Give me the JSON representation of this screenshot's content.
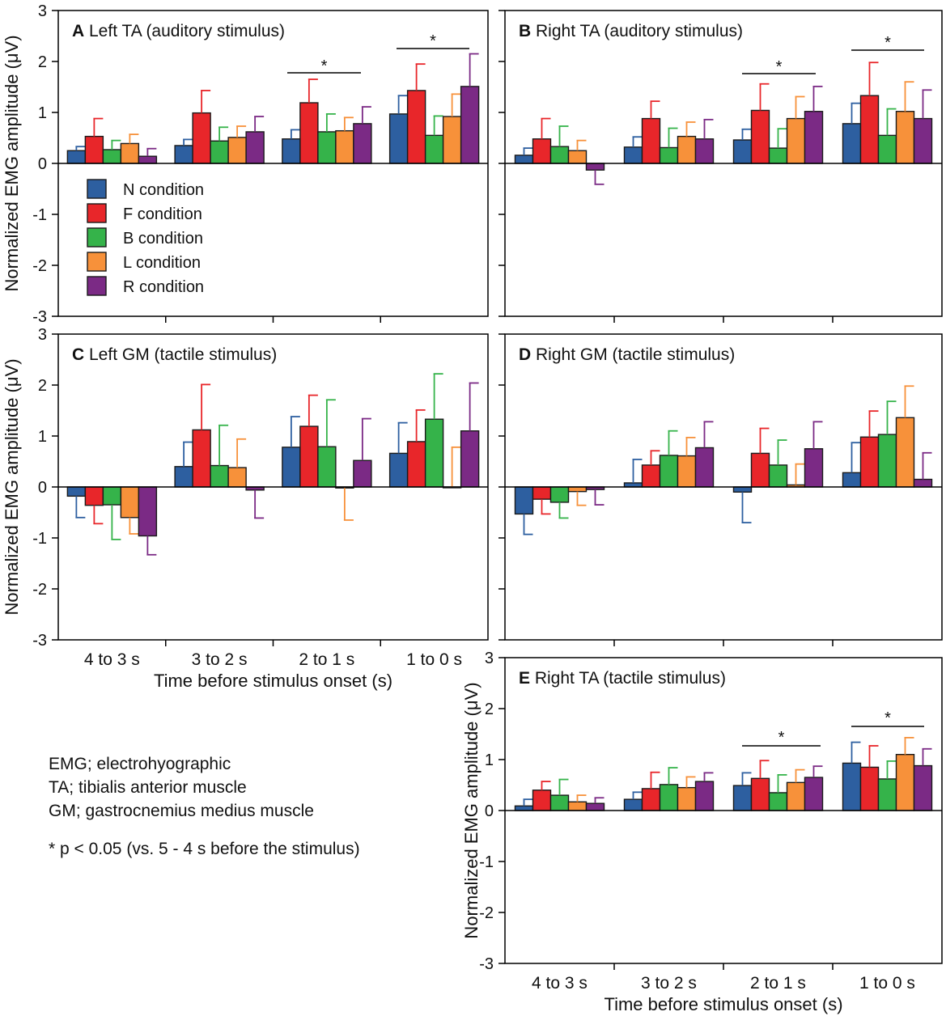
{
  "chart_data": [
    {
      "type": "bar",
      "panel": "A",
      "title": "Left TA (auditory stimulus)",
      "categories": [
        "4 to 3 s",
        "3 to 2 s",
        "2 to 1 s",
        "1 to 0 s"
      ],
      "ylabel": "Normalized EMG amplitude (μV)",
      "xlabel": "",
      "ylim": [
        -3,
        3
      ],
      "yticks": [
        "3",
        "2",
        "1",
        "0",
        "-1",
        "-2",
        "-3"
      ],
      "series": [
        {
          "name": "N condition",
          "values": [
            0.25,
            0.35,
            0.48,
            0.97
          ],
          "errors": [
            0.08,
            0.12,
            0.18,
            0.36
          ]
        },
        {
          "name": "F condition",
          "values": [
            0.53,
            0.99,
            1.19,
            1.43
          ],
          "errors": [
            0.35,
            0.44,
            0.46,
            0.52
          ]
        },
        {
          "name": "B condition",
          "values": [
            0.27,
            0.44,
            0.62,
            0.55
          ],
          "errors": [
            0.18,
            0.27,
            0.35,
            0.38
          ]
        },
        {
          "name": "L condition",
          "values": [
            0.39,
            0.51,
            0.64,
            0.92
          ],
          "errors": [
            0.18,
            0.22,
            0.26,
            0.44
          ]
        },
        {
          "name": "R condition",
          "values": [
            0.14,
            0.62,
            0.78,
            1.51
          ],
          "errors": [
            0.15,
            0.3,
            0.33,
            0.64
          ]
        }
      ],
      "significance": [
        {
          "category": "2 to 1 s",
          "label": "*"
        },
        {
          "category": "1 to 0 s",
          "label": "*"
        }
      ],
      "legend": "inside lower-left"
    },
    {
      "type": "bar",
      "panel": "B",
      "title": "Right TA (auditory stimulus)",
      "categories": [
        "4 to 3 s",
        "3 to 2 s",
        "2 to 1 s",
        "1 to 0 s"
      ],
      "ylabel": "",
      "xlabel": "",
      "ylim": [
        -3,
        3
      ],
      "series": [
        {
          "name": "N condition",
          "values": [
            0.16,
            0.32,
            0.46,
            0.78
          ],
          "errors": [
            0.14,
            0.2,
            0.21,
            0.4
          ]
        },
        {
          "name": "F condition",
          "values": [
            0.48,
            0.88,
            1.04,
            1.33
          ],
          "errors": [
            0.4,
            0.34,
            0.52,
            0.65
          ]
        },
        {
          "name": "B condition",
          "values": [
            0.33,
            0.31,
            0.3,
            0.55
          ],
          "errors": [
            0.4,
            0.38,
            0.38,
            0.52
          ]
        },
        {
          "name": "L condition",
          "values": [
            0.25,
            0.53,
            0.88,
            1.02
          ],
          "errors": [
            0.2,
            0.28,
            0.43,
            0.58
          ]
        },
        {
          "name": "R condition",
          "values": [
            -0.13,
            0.48,
            1.02,
            0.88
          ],
          "errors": [
            0.28,
            0.38,
            0.49,
            0.56
          ]
        }
      ],
      "significance": [
        {
          "category": "2 to 1 s",
          "label": "*"
        },
        {
          "category": "1 to 0 s",
          "label": "*"
        }
      ]
    },
    {
      "type": "bar",
      "panel": "C",
      "title": "Left GM (tactile stimulus)",
      "categories": [
        "4 to 3 s",
        "3 to 2 s",
        "2 to 1 s",
        "1 to 0 s"
      ],
      "ylabel": "Normalized EMG amplitude (μV)",
      "xlabel": "Time before stimulus onset (s)",
      "ylim": [
        -3,
        3
      ],
      "yticks": [
        "3",
        "2",
        "1",
        "0",
        "-1",
        "-2",
        "-3"
      ],
      "series": [
        {
          "name": "N condition",
          "values": [
            -0.18,
            0.4,
            0.78,
            0.66
          ],
          "errors": [
            0.42,
            0.48,
            0.6,
            0.6
          ]
        },
        {
          "name": "F condition",
          "values": [
            -0.36,
            1.12,
            1.19,
            0.89
          ],
          "errors": [
            0.36,
            0.89,
            0.61,
            0.62
          ]
        },
        {
          "name": "B condition",
          "values": [
            -0.35,
            0.42,
            0.79,
            1.33
          ],
          "errors": [
            0.68,
            0.79,
            0.92,
            0.89
          ]
        },
        {
          "name": "L condition",
          "values": [
            -0.6,
            0.38,
            -0.02,
            0.0
          ],
          "errors": [
            0.32,
            0.56,
            0.63,
            0.78
          ]
        },
        {
          "name": "R condition",
          "values": [
            -0.96,
            -0.06,
            0.52,
            1.1
          ],
          "errors": [
            0.37,
            0.55,
            0.82,
            0.94
          ]
        }
      ]
    },
    {
      "type": "bar",
      "panel": "D",
      "title": "Right GM (tactile stimulus)",
      "categories": [
        "4 to 3 s",
        "3 to 2 s",
        "2 to 1 s",
        "1 to 0 s"
      ],
      "ylabel": "",
      "xlabel": "",
      "ylim": [
        -3,
        3
      ],
      "series": [
        {
          "name": "N condition",
          "values": [
            -0.53,
            0.08,
            -0.1,
            0.28
          ],
          "errors": [
            0.4,
            0.46,
            0.6,
            0.59
          ]
        },
        {
          "name": "F condition",
          "values": [
            -0.24,
            0.43,
            0.66,
            0.98
          ],
          "errors": [
            0.29,
            0.28,
            0.49,
            0.51
          ]
        },
        {
          "name": "B condition",
          "values": [
            -0.3,
            0.62,
            0.43,
            1.03
          ],
          "errors": [
            0.31,
            0.48,
            0.49,
            0.65
          ]
        },
        {
          "name": "L condition",
          "values": [
            -0.09,
            0.61,
            0.04,
            1.36
          ],
          "errors": [
            0.27,
            0.36,
            0.41,
            0.62
          ]
        },
        {
          "name": "R condition",
          "values": [
            -0.05,
            0.77,
            0.75,
            0.15
          ],
          "errors": [
            0.3,
            0.51,
            0.53,
            0.52
          ]
        }
      ]
    },
    {
      "type": "bar",
      "panel": "E",
      "title": "Right TA (tactile stimulus)",
      "categories": [
        "4 to 3 s",
        "3 to 2 s",
        "2 to 1 s",
        "1 to 0 s"
      ],
      "ylabel": "Normalized EMG amplitude (μV)",
      "xlabel": "Time before stimulus onset (s)",
      "ylim": [
        -3,
        3
      ],
      "yticks": [
        "3",
        "2",
        "1",
        "0",
        "-1",
        "-2",
        "-3"
      ],
      "series": [
        {
          "name": "N condition",
          "values": [
            0.09,
            0.22,
            0.49,
            0.93
          ],
          "errors": [
            0.13,
            0.14,
            0.25,
            0.41
          ]
        },
        {
          "name": "F condition",
          "values": [
            0.4,
            0.43,
            0.63,
            0.85
          ],
          "errors": [
            0.17,
            0.32,
            0.35,
            0.42
          ]
        },
        {
          "name": "B condition",
          "values": [
            0.3,
            0.51,
            0.35,
            0.62
          ],
          "errors": [
            0.31,
            0.33,
            0.35,
            0.35
          ]
        },
        {
          "name": "L condition",
          "values": [
            0.17,
            0.45,
            0.55,
            1.1
          ],
          "errors": [
            0.13,
            0.21,
            0.25,
            0.33
          ]
        },
        {
          "name": "R condition",
          "values": [
            0.14,
            0.57,
            0.65,
            0.88
          ],
          "errors": [
            0.11,
            0.17,
            0.22,
            0.33
          ]
        }
      ],
      "significance": [
        {
          "category": "2 to 1 s",
          "label": "*"
        },
        {
          "category": "1 to 0 s",
          "label": "*"
        }
      ]
    }
  ],
  "colors": {
    "N condition": "#2d5fa0",
    "F condition": "#e8262a",
    "B condition": "#35b34a",
    "L condition": "#f7913a",
    "R condition": "#7b2a85",
    "axis": "#000000"
  },
  "notes": {
    "emg": "EMG; electrohyographic",
    "ta": "TA; tibialis anterior muscle",
    "gm": "GM; gastrocnemius medius muscle",
    "sig": "* p < 0.05 (vs. 5 - 4 s before the stimulus)"
  }
}
